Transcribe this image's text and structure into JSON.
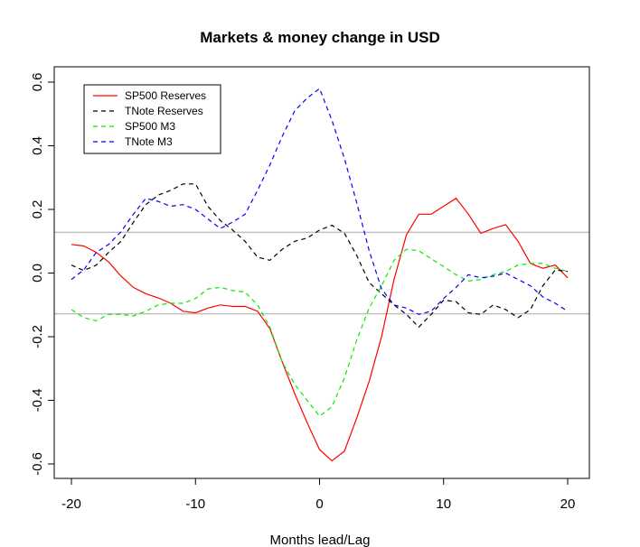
{
  "chart_data": {
    "type": "line",
    "title": "Markets & money change in USD",
    "xlabel": "Months lead/Lag",
    "ylabel": "",
    "xlim": [
      -20,
      20
    ],
    "ylim": [
      -0.6,
      0.6
    ],
    "x_ticks": [
      -20,
      -10,
      0,
      10,
      20
    ],
    "x_tick_labels": [
      "-20",
      "-10",
      "0",
      "10",
      "20"
    ],
    "y_ticks": [
      -0.6,
      -0.4,
      -0.2,
      0.0,
      0.2,
      0.4,
      0.6
    ],
    "y_tick_labels": [
      "-0.6",
      "-0.4",
      "-0.2",
      "0.0",
      "0.2",
      "0.4",
      "0.6"
    ],
    "grid": false,
    "legend_position": "top-left",
    "reference_lines": [
      0.128,
      -0.128
    ],
    "reference_line_color": "#c0c0c0",
    "x": [
      -20,
      -19,
      -18,
      -17,
      -16,
      -15,
      -14,
      -13,
      -12,
      -11,
      -10,
      -9,
      -8,
      -7,
      -6,
      -5,
      -4,
      -3,
      -2,
      -1,
      0,
      1,
      2,
      3,
      4,
      5,
      6,
      7,
      8,
      9,
      10,
      11,
      12,
      13,
      14,
      15,
      16,
      17,
      18,
      19,
      20
    ],
    "series": [
      {
        "name": "SP500 Reserves",
        "color": "#ff0000",
        "dash": "solid",
        "values": [
          0.09,
          0.085,
          0.065,
          0.035,
          -0.01,
          -0.045,
          -0.065,
          -0.078,
          -0.095,
          -0.12,
          -0.125,
          -0.11,
          -0.1,
          -0.105,
          -0.105,
          -0.12,
          -0.175,
          -0.28,
          -0.38,
          -0.47,
          -0.555,
          -0.59,
          -0.56,
          -0.455,
          -0.34,
          -0.2,
          -0.02,
          0.12,
          0.185,
          0.185,
          0.21,
          0.235,
          0.185,
          0.125,
          0.14,
          0.152,
          0.1,
          0.03,
          0.015,
          0.025,
          -0.015
        ]
      },
      {
        "name": "TNote Reserves",
        "color": "#000000",
        "dash": "dashed",
        "values": [
          0.025,
          0.008,
          0.025,
          0.065,
          0.1,
          0.16,
          0.215,
          0.245,
          0.26,
          0.28,
          0.28,
          0.21,
          0.165,
          0.135,
          0.1,
          0.05,
          0.04,
          0.075,
          0.1,
          0.11,
          0.135,
          0.15,
          0.125,
          0.055,
          -0.03,
          -0.065,
          -0.1,
          -0.13,
          -0.17,
          -0.13,
          -0.085,
          -0.09,
          -0.125,
          -0.13,
          -0.1,
          -0.115,
          -0.14,
          -0.115,
          -0.04,
          0.01,
          0.005
        ]
      },
      {
        "name": "SP500 M3",
        "color": "#00ee00",
        "dash": "dashed",
        "values": [
          -0.115,
          -0.14,
          -0.15,
          -0.13,
          -0.13,
          -0.135,
          -0.12,
          -0.1,
          -0.095,
          -0.095,
          -0.08,
          -0.05,
          -0.045,
          -0.055,
          -0.06,
          -0.1,
          -0.17,
          -0.28,
          -0.35,
          -0.4,
          -0.45,
          -0.42,
          -0.33,
          -0.21,
          -0.11,
          -0.04,
          0.04,
          0.075,
          0.07,
          0.045,
          0.02,
          -0.005,
          -0.025,
          -0.02,
          -0.005,
          0.005,
          0.025,
          0.03,
          0.03,
          0.015,
          0.005
        ]
      },
      {
        "name": "TNote M3",
        "color": "#0000ff",
        "dash": "dashed",
        "values": [
          -0.02,
          0.01,
          0.065,
          0.09,
          0.13,
          0.185,
          0.235,
          0.225,
          0.21,
          0.215,
          0.2,
          0.17,
          0.14,
          0.16,
          0.185,
          0.26,
          0.34,
          0.43,
          0.51,
          0.55,
          0.58,
          0.48,
          0.36,
          0.22,
          0.07,
          -0.05,
          -0.1,
          -0.11,
          -0.13,
          -0.12,
          -0.08,
          -0.045,
          -0.005,
          -0.015,
          -0.01,
          0.0,
          -0.02,
          -0.04,
          -0.075,
          -0.095,
          -0.12
        ]
      }
    ]
  }
}
